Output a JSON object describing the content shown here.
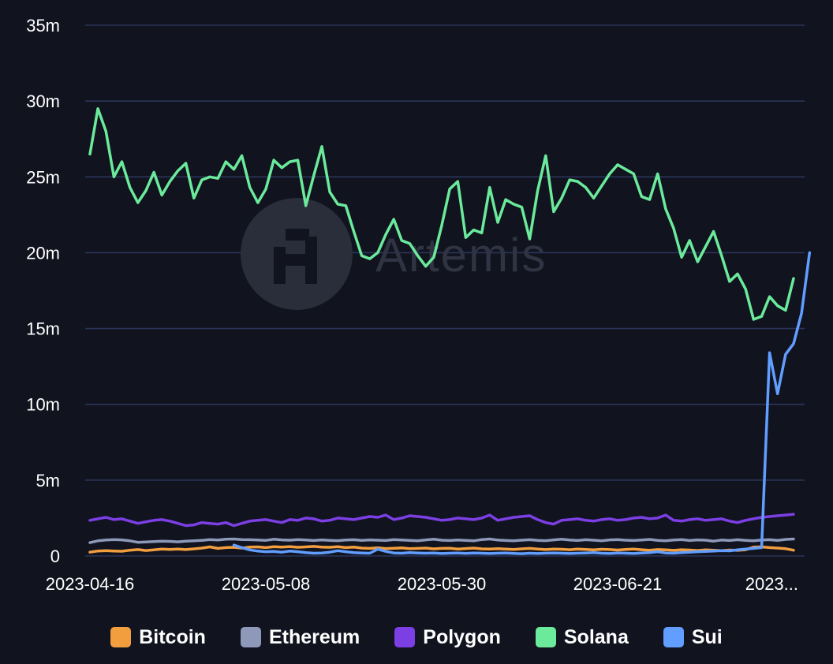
{
  "chart_data": {
    "type": "line",
    "title": "",
    "watermark": "Artemis",
    "xlabel": "",
    "ylabel": "",
    "ylim": [
      0,
      35000000
    ],
    "y_ticks": [
      {
        "value": 0,
        "label": "0"
      },
      {
        "value": 5000000,
        "label": "5m"
      },
      {
        "value": 10000000,
        "label": "10m"
      },
      {
        "value": 15000000,
        "label": "15m"
      },
      {
        "value": 20000000,
        "label": "20m"
      },
      {
        "value": 25000000,
        "label": "25m"
      },
      {
        "value": 30000000,
        "label": "30m"
      },
      {
        "value": 35000000,
        "label": "35m"
      }
    ],
    "x_start": "2023-04-16",
    "x_count": 89,
    "x_ticks": [
      {
        "index": 0,
        "label": "2023-04-16"
      },
      {
        "index": 22,
        "label": "2023-05-08"
      },
      {
        "index": 44,
        "label": "2023-05-30"
      },
      {
        "index": 66,
        "label": "2023-06-21"
      },
      {
        "index": 88,
        "label": "2023..."
      }
    ],
    "grid": true,
    "legend_position": "bottom",
    "series": [
      {
        "name": "Bitcoin",
        "color": "#f29e3f",
        "start_index": 0,
        "values": [
          0.25,
          0.33,
          0.35,
          0.33,
          0.31,
          0.38,
          0.42,
          0.36,
          0.4,
          0.45,
          0.43,
          0.46,
          0.42,
          0.47,
          0.52,
          0.6,
          0.5,
          0.55,
          0.57,
          0.52,
          0.58,
          0.6,
          0.55,
          0.61,
          0.58,
          0.62,
          0.57,
          0.6,
          0.63,
          0.59,
          0.57,
          0.61,
          0.55,
          0.58,
          0.52,
          0.5,
          0.54,
          0.49,
          0.51,
          0.53,
          0.48,
          0.5,
          0.52,
          0.47,
          0.5,
          0.51,
          0.46,
          0.49,
          0.52,
          0.47,
          0.45,
          0.48,
          0.46,
          0.43,
          0.47,
          0.5,
          0.45,
          0.42,
          0.46,
          0.44,
          0.41,
          0.45,
          0.43,
          0.4,
          0.44,
          0.42,
          0.39,
          0.43,
          0.45,
          0.41,
          0.38,
          0.42,
          0.4,
          0.37,
          0.41,
          0.39,
          0.36,
          0.4,
          0.38,
          0.35,
          0.39,
          0.37,
          0.41,
          0.58,
          0.6,
          0.55,
          0.52,
          0.48,
          0.38
        ]
      },
      {
        "name": "Ethereum",
        "color": "#8e98b9",
        "start_index": 0,
        "values": [
          0.88,
          1.0,
          1.05,
          1.08,
          1.06,
          1.0,
          0.9,
          0.92,
          0.95,
          0.97,
          0.96,
          0.93,
          0.97,
          1.0,
          1.03,
          1.08,
          1.05,
          1.1,
          1.12,
          1.08,
          1.07,
          1.05,
          1.03,
          1.1,
          1.06,
          1.04,
          1.08,
          1.05,
          1.02,
          1.06,
          1.03,
          1.01,
          1.05,
          1.07,
          1.03,
          1.06,
          1.04,
          1.02,
          1.08,
          1.05,
          1.03,
          1.0,
          1.06,
          1.1,
          1.04,
          1.02,
          1.05,
          1.03,
          1.0,
          1.08,
          1.12,
          1.05,
          1.02,
          1.0,
          1.04,
          1.07,
          1.03,
          1.01,
          1.06,
          1.1,
          1.05,
          1.02,
          1.07,
          1.04,
          1.0,
          1.06,
          1.08,
          1.04,
          1.02,
          1.05,
          1.09,
          1.03,
          1.0,
          1.05,
          1.08,
          1.02,
          1.06,
          1.04,
          0.98,
          1.05,
          1.02,
          1.07,
          1.03,
          1.0,
          1.05,
          1.07,
          1.03,
          1.09,
          1.12
        ]
      },
      {
        "name": "Polygon",
        "color": "#7b3fe4",
        "start_index": 0,
        "values": [
          2.35,
          2.45,
          2.55,
          2.4,
          2.45,
          2.3,
          2.15,
          2.25,
          2.35,
          2.4,
          2.3,
          2.15,
          2.0,
          2.05,
          2.2,
          2.15,
          2.1,
          2.2,
          2.0,
          2.15,
          2.3,
          2.35,
          2.4,
          2.3,
          2.2,
          2.4,
          2.35,
          2.5,
          2.45,
          2.3,
          2.35,
          2.5,
          2.45,
          2.4,
          2.5,
          2.6,
          2.55,
          2.7,
          2.4,
          2.5,
          2.65,
          2.6,
          2.55,
          2.45,
          2.35,
          2.4,
          2.5,
          2.45,
          2.4,
          2.5,
          2.7,
          2.35,
          2.45,
          2.55,
          2.6,
          2.65,
          2.4,
          2.2,
          2.1,
          2.35,
          2.4,
          2.45,
          2.35,
          2.3,
          2.4,
          2.45,
          2.35,
          2.4,
          2.5,
          2.55,
          2.45,
          2.5,
          2.7,
          2.35,
          2.3,
          2.4,
          2.45,
          2.35,
          2.4,
          2.45,
          2.3,
          2.2,
          2.35,
          2.45,
          2.55,
          2.6,
          2.65,
          2.7,
          2.75
        ]
      },
      {
        "name": "Solana",
        "color": "#6bea9b",
        "start_index": 0,
        "values": [
          26.5,
          29.5,
          28.0,
          25.0,
          26.0,
          24.3,
          23.3,
          24.1,
          25.3,
          23.8,
          24.7,
          25.4,
          25.9,
          23.6,
          24.8,
          25.0,
          24.9,
          26.0,
          25.5,
          26.4,
          24.3,
          23.3,
          24.2,
          26.1,
          25.6,
          26.0,
          26.1,
          23.1,
          25.1,
          27.0,
          24.0,
          23.2,
          23.1,
          21.4,
          19.8,
          19.6,
          20.0,
          21.2,
          22.2,
          20.8,
          20.6,
          19.8,
          19.1,
          19.7,
          21.8,
          24.2,
          24.7,
          21.0,
          21.5,
          21.3,
          24.3,
          22.0,
          23.5,
          23.2,
          23.0,
          20.9,
          24.1,
          26.4,
          22.7,
          23.6,
          24.8,
          24.7,
          24.3,
          23.6,
          24.4,
          25.2,
          25.8,
          25.5,
          25.2,
          23.7,
          23.5,
          25.2,
          22.9,
          21.6,
          19.7,
          20.8,
          19.4,
          20.4,
          21.4,
          19.8,
          18.1,
          18.6,
          17.6,
          15.6,
          15.8,
          17.1,
          16.5,
          16.2,
          18.3
        ]
      },
      {
        "name": "Sui",
        "color": "#619eff",
        "start_index": 18,
        "values": [
          0.72,
          0.55,
          0.4,
          0.32,
          0.28,
          0.3,
          0.25,
          0.32,
          0.28,
          0.22,
          0.18,
          0.2,
          0.25,
          0.35,
          0.28,
          0.22,
          0.2,
          0.18,
          0.45,
          0.3,
          0.2,
          0.18,
          0.22,
          0.2,
          0.18,
          0.2,
          0.16,
          0.18,
          0.2,
          0.17,
          0.2,
          0.18,
          0.16,
          0.18,
          0.2,
          0.17,
          0.15,
          0.18,
          0.16,
          0.18,
          0.2,
          0.18,
          0.16,
          0.18,
          0.2,
          0.22,
          0.18,
          0.16,
          0.2,
          0.18,
          0.16,
          0.2,
          0.22,
          0.28,
          0.2,
          0.18,
          0.22,
          0.25,
          0.28,
          0.3,
          0.32,
          0.35,
          0.34,
          0.4,
          0.45,
          0.5,
          0.55,
          13.4,
          10.7,
          13.3,
          14.0,
          16.0,
          20.0
        ]
      }
    ]
  }
}
